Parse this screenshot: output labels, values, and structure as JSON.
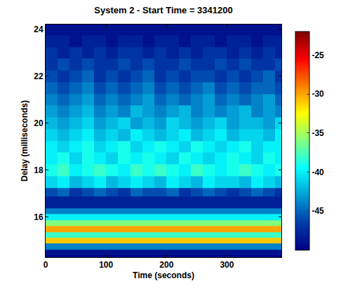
{
  "chart_data": {
    "type": "heatmap",
    "title": "System 2 - Start Time = 3341200",
    "x_label": "Time (seconds)",
    "y_label": "Delay (milliseconds)",
    "x": [
      10,
      30,
      50,
      70,
      90,
      110,
      130,
      150,
      170,
      190,
      210,
      230,
      250,
      270,
      290,
      310,
      330,
      350,
      370,
      390
    ],
    "y": [
      14.5,
      14.75,
      15.0,
      15.25,
      15.5,
      15.75,
      16.0,
      16.25,
      16.5,
      16.75,
      17.0,
      17.5,
      18.0,
      18.5,
      19.0,
      19.5,
      20.0,
      20.5,
      21.0,
      21.5,
      22.0,
      22.5,
      23.0,
      23.5,
      24.0
    ],
    "z": [
      [
        -49,
        -49,
        -49,
        -49,
        -49,
        -49,
        -49,
        -49,
        -49,
        -49,
        -49,
        -49,
        -49,
        -49,
        -49,
        -49,
        -49,
        -49,
        -49,
        -49
      ],
      [
        -44,
        -44,
        -44,
        -44,
        -44,
        -44,
        -44,
        -44,
        -44,
        -44,
        -44,
        -44,
        -44,
        -44,
        -44,
        -44,
        -44,
        -44,
        -44,
        -44
      ],
      [
        -31,
        -31,
        -31,
        -31,
        -31,
        -31,
        -31,
        -31,
        -31,
        -31,
        -31,
        -31,
        -31,
        -31,
        -31,
        -31,
        -31,
        -31,
        -31,
        -31
      ],
      [
        -38,
        -38,
        -38,
        -38,
        -38,
        -38,
        -38,
        -38,
        -38,
        -38,
        -38,
        -38,
        -38,
        -38,
        -38,
        -38,
        -38,
        -38,
        -38,
        -38
      ],
      [
        -30,
        -30,
        -30,
        -30,
        -30,
        -30,
        -30,
        -30,
        -30,
        -30,
        -30,
        -30,
        -30,
        -30,
        -30,
        -30,
        -30,
        -30,
        -30,
        -30
      ],
      [
        -36,
        -36,
        -36,
        -36,
        -36,
        -36,
        -36,
        -36,
        -36,
        -36,
        -36,
        -36,
        -36,
        -36,
        -36,
        -36,
        -36,
        -36,
        -36,
        -36
      ],
      [
        -40,
        -40,
        -40,
        -40,
        -40,
        -40,
        -40,
        -40,
        -40,
        -40,
        -40,
        -40,
        -40,
        -40,
        -40,
        -40,
        -40,
        -40,
        -40,
        -40
      ],
      [
        -44,
        -44,
        -44,
        -44,
        -44,
        -44,
        -44,
        -44,
        -44,
        -44,
        -44,
        -44,
        -44,
        -44,
        -44,
        -44,
        -44,
        -44,
        -44,
        -44
      ],
      [
        -48,
        -48,
        -48,
        -48,
        -48,
        -48,
        -48,
        -48,
        -48,
        -48,
        -48,
        -48,
        -48,
        -48,
        -48,
        -48,
        -48,
        -48,
        -48,
        -48
      ],
      [
        -48,
        -48,
        -48,
        -48,
        -48,
        -48,
        -48,
        -48,
        -48,
        -48,
        -48,
        -48,
        -48,
        -48,
        -48,
        -48,
        -48,
        -48,
        -48,
        -48
      ],
      [
        -46,
        -45,
        -47,
        -46,
        -45,
        -46,
        -47,
        -45,
        -46,
        -46,
        -45,
        -47,
        -46,
        -45,
        -46,
        -47,
        -46,
        -45,
        -46,
        -47
      ],
      [
        -41,
        -40,
        -42,
        -41,
        -40,
        -42,
        -41,
        -40,
        -41,
        -42,
        -40,
        -41,
        -42,
        -40,
        -41,
        -41,
        -42,
        -40,
        -41,
        -42
      ],
      [
        -39,
        -38,
        -40,
        -39,
        -38,
        -39,
        -40,
        -38,
        -39,
        -38,
        -39,
        -40,
        -38,
        -39,
        -40,
        -39,
        -38,
        -39,
        -40,
        -39
      ],
      [
        -40,
        -39,
        -41,
        -39,
        -40,
        -41,
        -39,
        -40,
        -39,
        -40,
        -41,
        -39,
        -40,
        -41,
        -40,
        -39,
        -40,
        -41,
        -39,
        -40
      ],
      [
        -40,
        -41,
        -40,
        -39,
        -41,
        -40,
        -39,
        -41,
        -40,
        -39,
        -40,
        -41,
        -39,
        -40,
        -41,
        -40,
        -39,
        -41,
        -40,
        -40
      ],
      [
        -41,
        -42,
        -41,
        -40,
        -42,
        -41,
        -42,
        -40,
        -41,
        -42,
        -41,
        -40,
        -42,
        -41,
        -40,
        -42,
        -41,
        -41,
        -42,
        -40
      ],
      [
        -42,
        -43,
        -42,
        -41,
        -43,
        -42,
        -41,
        -43,
        -42,
        -43,
        -41,
        -42,
        -43,
        -42,
        -41,
        -43,
        -42,
        -42,
        -43,
        -41
      ],
      [
        -43,
        -44,
        -43,
        -42,
        -44,
        -43,
        -44,
        -42,
        -43,
        -44,
        -43,
        -42,
        -44,
        -43,
        -44,
        -43,
        -42,
        -44,
        -43,
        -44
      ],
      [
        -44,
        -45,
        -44,
        -43,
        -45,
        -44,
        -45,
        -44,
        -43,
        -45,
        -44,
        -45,
        -44,
        -43,
        -45,
        -44,
        -45,
        -44,
        -43,
        -45
      ],
      [
        -45,
        -46,
        -45,
        -44,
        -46,
        -45,
        -46,
        -45,
        -44,
        -46,
        -45,
        -46,
        -45,
        -44,
        -46,
        -45,
        -46,
        -45,
        -45,
        -46
      ],
      [
        -46,
        -47,
        -46,
        -45,
        -47,
        -46,
        -47,
        -46,
        -45,
        -47,
        -46,
        -47,
        -46,
        -46,
        -47,
        -46,
        -47,
        -46,
        -45,
        -47
      ],
      [
        -47,
        -46,
        -47,
        -46,
        -47,
        -47,
        -46,
        -47,
        -46,
        -47,
        -47,
        -46,
        -47,
        -47,
        -46,
        -47,
        -46,
        -47,
        -47,
        -46
      ],
      [
        -47,
        -48,
        -47,
        -48,
        -47,
        -48,
        -47,
        -47,
        -48,
        -47,
        -48,
        -47,
        -48,
        -47,
        -47,
        -48,
        -47,
        -48,
        -47,
        -48
      ],
      [
        -48,
        -48,
        -49,
        -48,
        -48,
        -49,
        -48,
        -48,
        -49,
        -48,
        -48,
        -49,
        -48,
        -48,
        -49,
        -48,
        -48,
        -49,
        -48,
        -48
      ],
      [
        -49,
        -49,
        -49,
        -49,
        -49,
        -49,
        -49,
        -49,
        -49,
        -49,
        -49,
        -49,
        -49,
        -49,
        -49,
        -49,
        -49,
        -49,
        -49,
        -49
      ]
    ],
    "xlim": [
      0,
      390
    ],
    "ylim": [
      14.3,
      24.2
    ],
    "xticks": [
      0,
      100,
      200,
      300
    ],
    "yticks": [
      16,
      18,
      20,
      22,
      24
    ],
    "colorbar_range": [
      -50,
      -22
    ],
    "colorbar_ticks": [
      -45,
      -40,
      -35,
      -30,
      -25
    ]
  }
}
